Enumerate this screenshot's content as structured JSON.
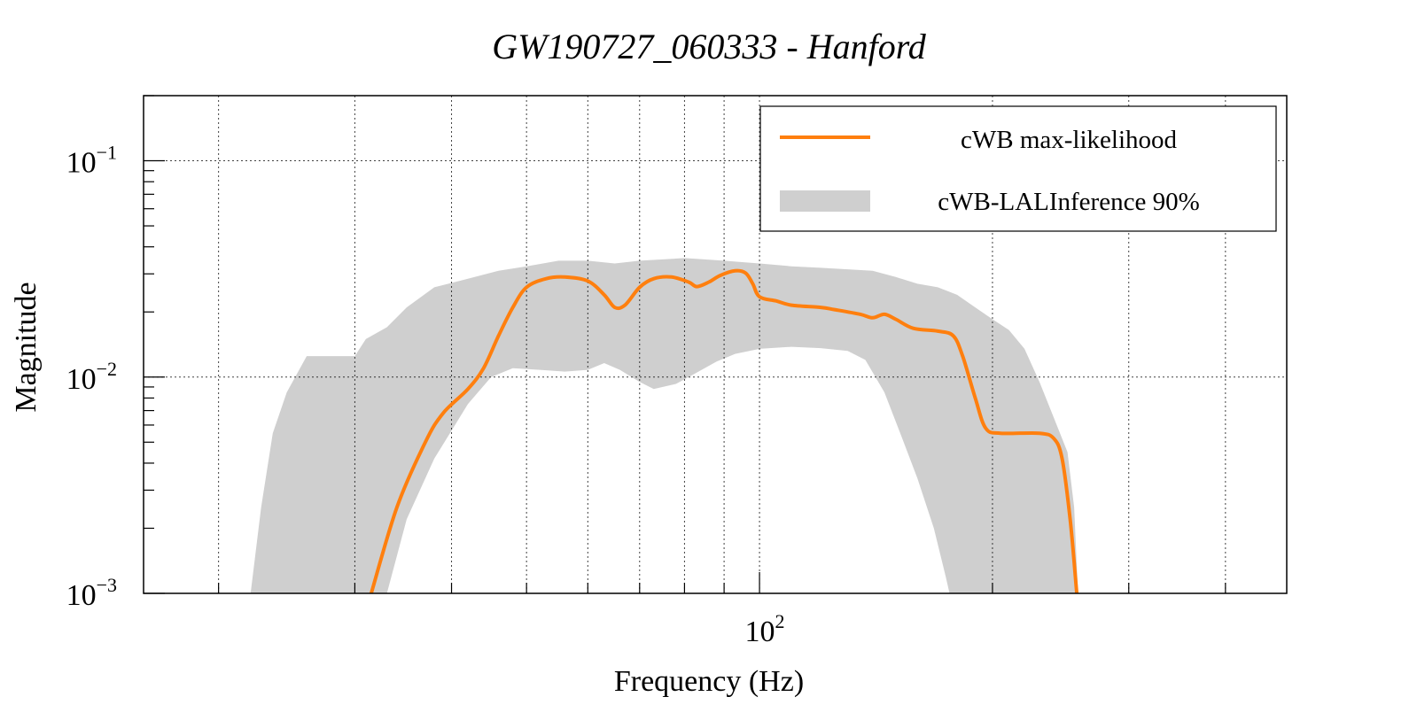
{
  "chart_data": {
    "type": "line",
    "title": "GW190727_060333 - Hanford",
    "xlabel": "Frequency (Hz)",
    "ylabel": "Magnitude",
    "xscale": "log",
    "yscale": "log",
    "xlim": [
      16,
      480
    ],
    "ylim": [
      0.001,
      0.2
    ],
    "grid": true,
    "legend_position": "top-right",
    "x_tick_labels": [
      {
        "value": 100,
        "base": "10",
        "exp": "2"
      }
    ],
    "y_tick_labels": [
      {
        "value": 0.001,
        "base": "10",
        "exp": "−3"
      },
      {
        "value": 0.01,
        "base": "10",
        "exp": "−2"
      },
      {
        "value": 0.1,
        "base": "10",
        "exp": "−1"
      }
    ],
    "series": [
      {
        "name": "cWB max-likelihood",
        "kind": "line",
        "color": "#ff7f0e",
        "points": [
          [
            31.5,
            0.001
          ],
          [
            34,
            0.0025
          ],
          [
            37,
            0.005
          ],
          [
            39,
            0.0068
          ],
          [
            42,
            0.0088
          ],
          [
            44,
            0.011
          ],
          [
            46,
            0.0155
          ],
          [
            48,
            0.021
          ],
          [
            50,
            0.026
          ],
          [
            53,
            0.0285
          ],
          [
            56,
            0.029
          ],
          [
            60,
            0.0278
          ],
          [
            63,
            0.024
          ],
          [
            65,
            0.021
          ],
          [
            67,
            0.0215
          ],
          [
            70,
            0.026
          ],
          [
            73,
            0.0285
          ],
          [
            77,
            0.029
          ],
          [
            81,
            0.0275
          ],
          [
            83,
            0.0262
          ],
          [
            86,
            0.0275
          ],
          [
            89,
            0.0295
          ],
          [
            93,
            0.031
          ],
          [
            96,
            0.0302
          ],
          [
            98,
            0.027
          ],
          [
            100,
            0.0235
          ],
          [
            105,
            0.0225
          ],
          [
            110,
            0.0215
          ],
          [
            120,
            0.021
          ],
          [
            125,
            0.0205
          ],
          [
            135,
            0.0195
          ],
          [
            140,
            0.0188
          ],
          [
            145,
            0.0195
          ],
          [
            150,
            0.0185
          ],
          [
            158,
            0.0168
          ],
          [
            170,
            0.0163
          ],
          [
            178,
            0.0155
          ],
          [
            183,
            0.0125
          ],
          [
            190,
            0.008
          ],
          [
            196,
            0.0058
          ],
          [
            205,
            0.0055
          ],
          [
            230,
            0.0055
          ],
          [
            240,
            0.0052
          ],
          [
            246,
            0.0042
          ],
          [
            252,
            0.0022
          ],
          [
            257,
            0.001
          ]
        ]
      },
      {
        "name": "cWB-LALInference 90%",
        "kind": "band",
        "color": "#cfcfcf",
        "upper": [
          [
            22,
            0.001
          ],
          [
            22.7,
            0.0025
          ],
          [
            23.5,
            0.0055
          ],
          [
            24.5,
            0.0085
          ],
          [
            26,
            0.0125
          ],
          [
            30,
            0.0125
          ],
          [
            31,
            0.015
          ],
          [
            33,
            0.017
          ],
          [
            35,
            0.021
          ],
          [
            38,
            0.026
          ],
          [
            42,
            0.0285
          ],
          [
            46,
            0.031
          ],
          [
            50,
            0.0325
          ],
          [
            55,
            0.0345
          ],
          [
            60,
            0.0345
          ],
          [
            65,
            0.0335
          ],
          [
            70,
            0.0345
          ],
          [
            80,
            0.0355
          ],
          [
            90,
            0.0345
          ],
          [
            95,
            0.034
          ],
          [
            100,
            0.0335
          ],
          [
            110,
            0.0325
          ],
          [
            120,
            0.032
          ],
          [
            130,
            0.0315
          ],
          [
            140,
            0.031
          ],
          [
            150,
            0.029
          ],
          [
            160,
            0.027
          ],
          [
            170,
            0.026
          ],
          [
            180,
            0.024
          ],
          [
            190,
            0.021
          ],
          [
            200,
            0.0185
          ],
          [
            210,
            0.0165
          ],
          [
            220,
            0.0135
          ],
          [
            230,
            0.0095
          ],
          [
            240,
            0.0065
          ],
          [
            250,
            0.0045
          ],
          [
            255,
            0.0025
          ],
          [
            258,
            0.001
          ]
        ],
        "lower": [
          [
            22,
            0.001
          ],
          [
            30,
            0.001
          ],
          [
            33,
            0.001
          ],
          [
            35,
            0.0022
          ],
          [
            38,
            0.0042
          ],
          [
            42,
            0.0075
          ],
          [
            45,
            0.01
          ],
          [
            48,
            0.011
          ],
          [
            52,
            0.0108
          ],
          [
            56,
            0.0106
          ],
          [
            60,
            0.0108
          ],
          [
            63,
            0.0116
          ],
          [
            66,
            0.0108
          ],
          [
            70,
            0.0095
          ],
          [
            73,
            0.0088
          ],
          [
            78,
            0.0093
          ],
          [
            83,
            0.0105
          ],
          [
            88,
            0.0118
          ],
          [
            93,
            0.0128
          ],
          [
            100,
            0.0135
          ],
          [
            110,
            0.0138
          ],
          [
            120,
            0.0136
          ],
          [
            130,
            0.0132
          ],
          [
            137,
            0.012
          ],
          [
            145,
            0.0085
          ],
          [
            152,
            0.0055
          ],
          [
            160,
            0.0034
          ],
          [
            168,
            0.002
          ],
          [
            174,
            0.0012
          ],
          [
            176,
            0.001
          ],
          [
            258,
            0.001
          ]
        ]
      }
    ]
  }
}
